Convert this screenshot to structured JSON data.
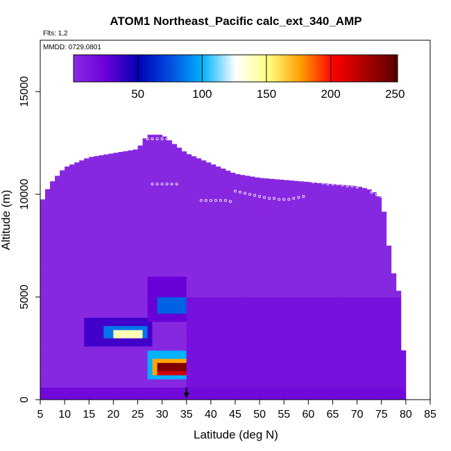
{
  "chart_data": {
    "type": "heatmap",
    "title": "ATOM1 Northeast_Pacific calc_ext_340_AMP",
    "flights_note": "Flts: 1,2",
    "date_note": "MMDD: 0729,0801",
    "xlabel": "Latitude (deg N)",
    "ylabel": "Altitude (m)",
    "xlim": [
      5,
      85
    ],
    "ylim": [
      0,
      17500
    ],
    "x_ticks": [
      "5",
      "10",
      "15",
      "20",
      "25",
      "30",
      "35",
      "40",
      "45",
      "50",
      "55",
      "60",
      "65",
      "70",
      "75",
      "80",
      "85"
    ],
    "y_ticks": [
      "0",
      "5000",
      "10000",
      "15000"
    ],
    "colorbar": {
      "min": 0,
      "max": 252,
      "ticks": [
        "50",
        "100",
        "150",
        "200",
        "250"
      ],
      "colors": [
        "#8a2be2",
        "#6a00d8",
        "#0000b4",
        "#0050e0",
        "#00b4ff",
        "#ffffff",
        "#ffff80",
        "#ffa000",
        "#ff0000",
        "#aa0000",
        "#5a0000"
      ]
    },
    "background_value": 2,
    "profile_top": [
      [
        5,
        9500
      ],
      [
        7,
        10500
      ],
      [
        10,
        11300
      ],
      [
        15,
        11800
      ],
      [
        20,
        12000
      ],
      [
        25,
        12200
      ],
      [
        27,
        12900
      ],
      [
        30,
        12900
      ],
      [
        35,
        12000
      ],
      [
        40,
        11500
      ],
      [
        45,
        11000
      ],
      [
        50,
        10800
      ],
      [
        55,
        10700
      ],
      [
        60,
        10600
      ],
      [
        65,
        10500
      ],
      [
        70,
        10400
      ],
      [
        73,
        10200
      ],
      [
        75,
        9800
      ],
      [
        76,
        8500
      ],
      [
        77,
        6500
      ],
      [
        78,
        5800
      ],
      [
        79,
        4800
      ],
      [
        80,
        0
      ]
    ],
    "regions": [
      {
        "lat": [
          5,
          80
        ],
        "alt": [
          0,
          600
        ],
        "value": 20
      },
      {
        "lat": [
          14,
          28
        ],
        "alt": [
          2600,
          4000
        ],
        "value": 35
      },
      {
        "lat": [
          18,
          27
        ],
        "alt": [
          3000,
          3600
        ],
        "value": 85
      },
      {
        "lat": [
          20,
          26
        ],
        "alt": [
          3100,
          3500
        ],
        "value": 140
      },
      {
        "lat": [
          27,
          35
        ],
        "alt": [
          3800,
          6000
        ],
        "value": 25
      },
      {
        "lat": [
          29,
          35
        ],
        "alt": [
          4200,
          5100
        ],
        "value": 80
      },
      {
        "lat": [
          27,
          78
        ],
        "alt": [
          1000,
          2400
        ],
        "value": 100
      },
      {
        "lat": [
          28,
          70
        ],
        "alt": [
          1200,
          2000
        ],
        "value": 175
      },
      {
        "lat": [
          29,
          50
        ],
        "alt": [
          1300,
          1900
        ],
        "value": 215
      },
      {
        "lat": [
          29,
          42
        ],
        "alt": [
          1400,
          1800
        ],
        "value": 240
      },
      {
        "lat": [
          35,
          80
        ],
        "alt": [
          600,
          5000
        ],
        "value": 15
      }
    ],
    "flight_track": [
      [
        27,
        12700
      ],
      [
        28,
        12700
      ],
      [
        29,
        12700
      ],
      [
        30,
        12700
      ],
      [
        31,
        12700
      ],
      [
        32,
        12700
      ],
      [
        33,
        12700
      ],
      [
        28,
        10500
      ],
      [
        29,
        10500
      ],
      [
        30,
        10500
      ],
      [
        31,
        10500
      ],
      [
        32,
        10500
      ],
      [
        33,
        10500
      ],
      [
        38,
        9700
      ],
      [
        39,
        9700
      ],
      [
        40,
        9700
      ],
      [
        41,
        9700
      ],
      [
        42,
        9700
      ],
      [
        43,
        9700
      ],
      [
        44,
        9650
      ],
      [
        45,
        10150
      ],
      [
        46,
        10100
      ],
      [
        47,
        10050
      ],
      [
        48,
        10000
      ],
      [
        49,
        9950
      ],
      [
        50,
        9900
      ],
      [
        51,
        9850
      ],
      [
        52,
        9800
      ],
      [
        53,
        9800
      ],
      [
        54,
        9750
      ],
      [
        55,
        9750
      ],
      [
        56,
        9750
      ],
      [
        57,
        9800
      ],
      [
        58,
        9850
      ],
      [
        59,
        9900
      ],
      [
        61,
        10600
      ],
      [
        62,
        10600
      ],
      [
        63,
        10550
      ],
      [
        64,
        10500
      ],
      [
        65,
        10500
      ],
      [
        66,
        10500
      ],
      [
        67,
        10450
      ],
      [
        68,
        10400
      ],
      [
        69,
        10400
      ],
      [
        70,
        10350
      ],
      [
        73,
        10100
      ],
      [
        74,
        10000
      ],
      [
        75,
        9900
      ],
      [
        76,
        9850
      ],
      [
        77,
        9750
      ]
    ],
    "arrow_lat": 35
  }
}
